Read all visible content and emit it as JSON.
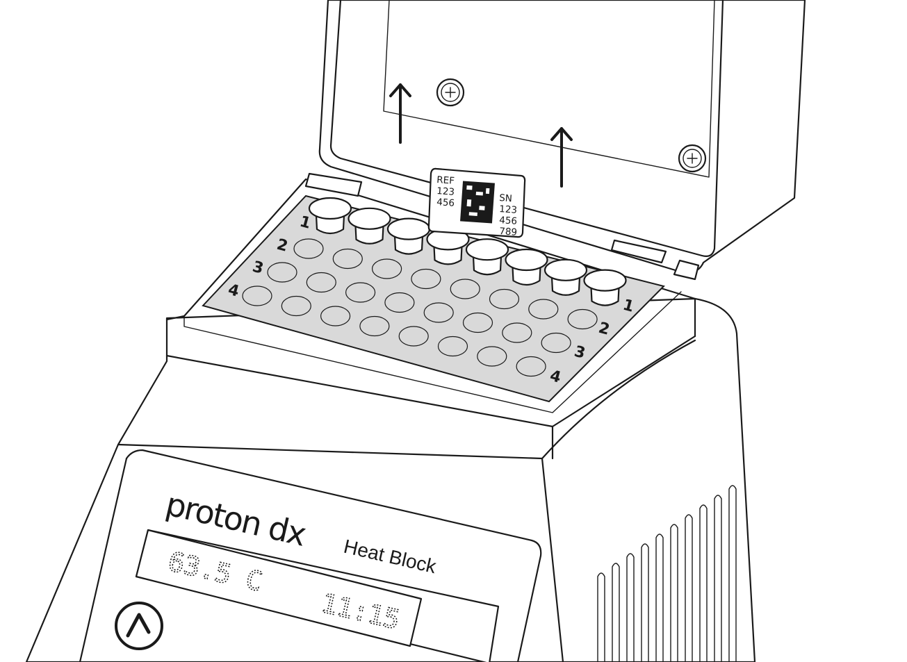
{
  "device": {
    "brand": "proton dx",
    "model": "Heat Block",
    "display": {
      "temperature": "63.5 C",
      "timer": "11:15"
    },
    "power_button_icon": "chevron-up-icon"
  },
  "sample_label": {
    "ref_title": "REF",
    "ref_lines": [
      "123",
      "456"
    ],
    "sn_title": "SN",
    "sn_lines": [
      "123",
      "456",
      "789"
    ]
  },
  "plate": {
    "left_row_labels": [
      "1",
      "2",
      "3",
      "4"
    ],
    "right_row_labels": [
      "1",
      "2",
      "3",
      "4"
    ]
  },
  "lid_arrows": [
    "arrow-up-icon",
    "arrow-up-icon"
  ],
  "colors": {
    "line": "#1a1a1a",
    "plate": "#d9d9d9",
    "body": "#ffffff"
  }
}
